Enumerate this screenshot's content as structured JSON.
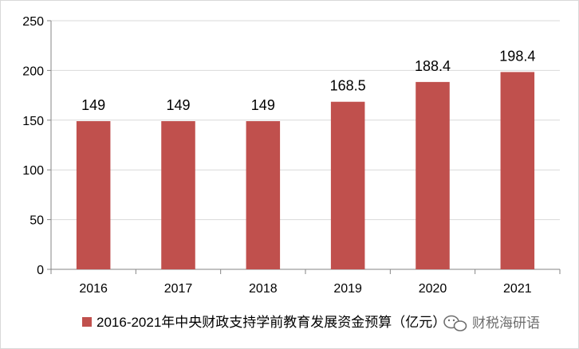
{
  "chart_data": {
    "type": "bar",
    "categories": [
      "2016",
      "2017",
      "2018",
      "2019",
      "2020",
      "2021"
    ],
    "series": [
      {
        "name": "2016-2021年中央财政支持学前教育发展资金预算（亿元）",
        "values": [
          149,
          149,
          149,
          168.5,
          188.4,
          198.4
        ],
        "color": "#c0504d"
      }
    ],
    "data_labels": [
      "149",
      "149",
      "149",
      "168.5",
      "188.4",
      "198.4"
    ],
    "y_ticks": [
      "0",
      "50",
      "100",
      "150",
      "200",
      "250"
    ],
    "ylim": [
      0,
      250
    ],
    "grid": true,
    "legend_position": "bottom",
    "title": "",
    "xlabel": "",
    "ylabel": ""
  },
  "watermark": {
    "text": "财税海研语",
    "icon": "wechat-icon"
  },
  "colors": {
    "bar": "#c0504d",
    "grid": "#d9d9d9",
    "axis": "#868686"
  }
}
